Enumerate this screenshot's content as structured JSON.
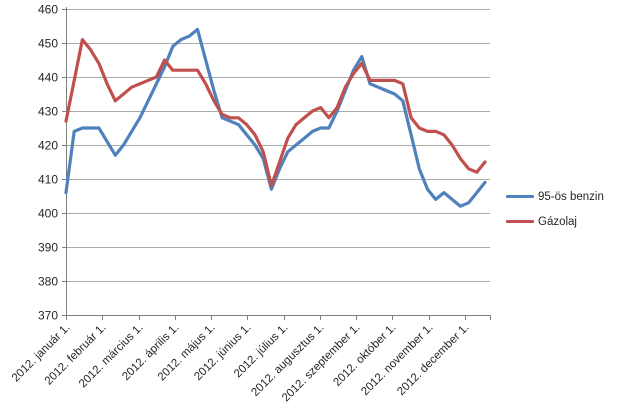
{
  "chart_data": {
    "type": "line",
    "title": "",
    "x_axis": {
      "unit": "52 weekly observations across 2012",
      "tick_labels": [
        "2012. január 1.",
        "2012. február 1.",
        "2012. március 1.",
        "2012. április 1.",
        "2012. május 1.",
        "2012. június 1.",
        "2012. július 1.",
        "2012. augusztus 1.",
        "2012. szeptember 1.",
        "2012. október 1.",
        "2012. november 1.",
        "2012. december 1."
      ]
    },
    "y_axis": {
      "min": 370,
      "max": 460,
      "step": 10,
      "tick_labels": [
        "370",
        "380",
        "390",
        "400",
        "410",
        "420",
        "430",
        "440",
        "450",
        "460"
      ]
    },
    "grid": true,
    "legend_position": "right",
    "series": [
      {
        "name": "95-ös benzin",
        "color": "#4F81BD",
        "values": [
          406,
          424,
          425,
          425,
          425,
          421,
          417,
          420,
          424,
          428,
          433,
          438,
          443,
          449,
          451,
          452,
          454,
          445,
          436,
          428,
          427,
          426,
          423,
          420,
          416,
          407,
          413,
          418,
          420,
          422,
          424,
          425,
          425,
          430,
          436,
          442,
          446,
          438,
          437,
          436,
          435,
          433,
          423,
          413,
          407,
          404,
          406,
          404,
          402,
          403,
          406,
          409
        ]
      },
      {
        "name": "Gázolaj",
        "color": "#C0504D",
        "values": [
          427,
          439,
          451,
          448,
          444,
          438,
          433,
          435,
          437,
          438,
          439,
          440,
          445,
          442,
          442,
          442,
          442,
          438,
          433,
          429,
          428,
          428,
          426,
          423,
          418,
          408,
          415,
          422,
          426,
          428,
          430,
          431,
          428,
          431,
          437,
          441,
          444,
          439,
          439,
          439,
          439,
          438,
          428,
          425,
          424,
          424,
          423,
          420,
          416,
          413,
          412,
          415
        ]
      }
    ]
  }
}
